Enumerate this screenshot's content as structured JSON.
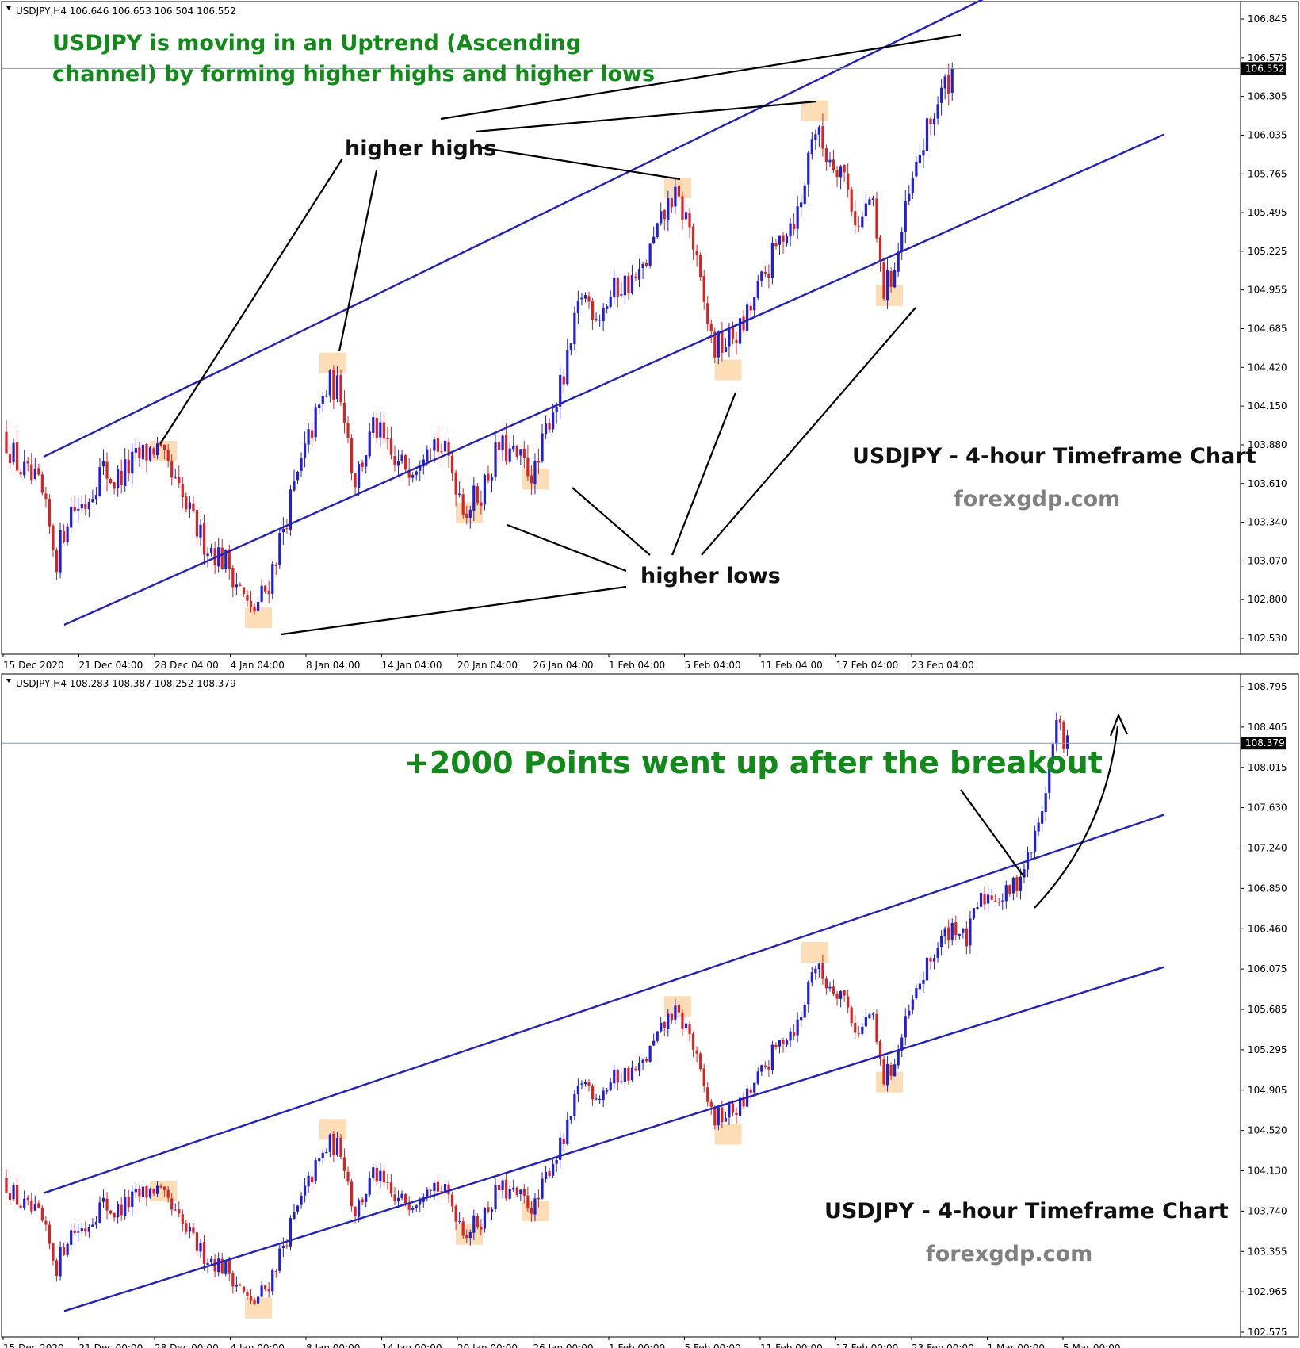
{
  "colors": {
    "bull": "#1f1fd8",
    "bear": "#e02020",
    "channel": "#2222bb",
    "grid": "#000000",
    "highlight": "#fbd7a8",
    "green_text": "#118a1a",
    "brand_text": "#808080"
  },
  "chart_data": [
    {
      "type": "candlestick",
      "instrument_info": "USDJPY,H4  106.646 106.653 106.504 106.552",
      "ylim": [
        102.45,
        106.95
      ],
      "y_ticks": [
        "106.845",
        "106.575",
        "106.305",
        "106.035",
        "105.765",
        "105.495",
        "105.225",
        "104.955",
        "104.685",
        "104.420",
        "104.150",
        "103.880",
        "103.610",
        "103.340",
        "103.070",
        "102.800",
        "102.530"
      ],
      "x_ticks": [
        "15 Dec 2020",
        "21 Dec 04:00",
        "28 Dec 04:00",
        "4 Jan 04:00",
        "8 Jan 04:00",
        "14 Jan 04:00",
        "20 Jan 04:00",
        "26 Jan 04:00",
        "1 Feb 04:00",
        "5 Feb 04:00",
        "11 Feb 04:00",
        "17 Feb 04:00",
        "23 Feb 04:00"
      ],
      "current_price": "106.552",
      "current_price_value": 106.552,
      "channel": {
        "upper": {
          "from": [
            0.045,
            103.78
          ],
          "to": [
            1.2,
            107.1
          ]
        },
        "lower": {
          "from": [
            0.07,
            102.58
          ],
          "to": [
            1.4,
            106.08
          ]
        }
      },
      "anchors": [
        {
          "t": 0.0,
          "p": 103.95
        },
        {
          "t": 0.02,
          "p": 103.7
        },
        {
          "t": 0.045,
          "p": 103.55
        },
        {
          "t": 0.065,
          "p": 103.05
        },
        {
          "t": 0.08,
          "p": 103.4
        },
        {
          "t": 0.1,
          "p": 103.45
        },
        {
          "t": 0.12,
          "p": 103.7
        },
        {
          "t": 0.135,
          "p": 103.6
        },
        {
          "t": 0.16,
          "p": 103.75
        },
        {
          "t": 0.185,
          "p": 103.85
        },
        {
          "t": 0.21,
          "p": 103.55
        },
        {
          "t": 0.24,
          "p": 103.2
        },
        {
          "t": 0.275,
          "p": 103.0
        },
        {
          "t": 0.3,
          "p": 102.65
        },
        {
          "t": 0.32,
          "p": 102.85
        },
        {
          "t": 0.345,
          "p": 103.4
        },
        {
          "t": 0.375,
          "p": 104.0
        },
        {
          "t": 0.395,
          "p": 104.3
        },
        {
          "t": 0.41,
          "p": 104.25
        },
        {
          "t": 0.425,
          "p": 103.6
        },
        {
          "t": 0.45,
          "p": 104.0
        },
        {
          "t": 0.475,
          "p": 103.7
        },
        {
          "t": 0.5,
          "p": 103.75
        },
        {
          "t": 0.515,
          "p": 103.95
        },
        {
          "t": 0.54,
          "p": 103.75
        },
        {
          "t": 0.56,
          "p": 103.4
        },
        {
          "t": 0.58,
          "p": 103.55
        },
        {
          "t": 0.6,
          "p": 103.85
        },
        {
          "t": 0.625,
          "p": 103.75
        },
        {
          "t": 0.645,
          "p": 103.65
        },
        {
          "t": 0.66,
          "p": 104.05
        },
        {
          "t": 0.68,
          "p": 104.35
        },
        {
          "t": 0.7,
          "p": 104.95
        },
        {
          "t": 0.72,
          "p": 104.8
        },
        {
          "t": 0.745,
          "p": 105.0
        },
        {
          "t": 0.77,
          "p": 105.05
        },
        {
          "t": 0.79,
          "p": 105.35
        },
        {
          "t": 0.81,
          "p": 105.65
        },
        {
          "t": 0.83,
          "p": 105.45
        },
        {
          "t": 0.845,
          "p": 104.95
        },
        {
          "t": 0.86,
          "p": 104.55
        },
        {
          "t": 0.875,
          "p": 104.6
        },
        {
          "t": 0.895,
          "p": 104.7
        },
        {
          "t": 0.92,
          "p": 105.05
        },
        {
          "t": 0.945,
          "p": 105.4
        },
        {
          "t": 0.965,
          "p": 105.55
        },
        {
          "t": 0.98,
          "p": 106.15
        },
        {
          "t": 0.995,
          "p": 105.95
        },
        {
          "t": 1.015,
          "p": 105.85
        },
        {
          "t": 1.035,
          "p": 105.4
        },
        {
          "t": 1.05,
          "p": 105.65
        },
        {
          "t": 1.065,
          "p": 104.95
        },
        {
          "t": 1.08,
          "p": 105.15
        },
        {
          "t": 1.095,
          "p": 105.6
        },
        {
          "t": 1.11,
          "p": 105.95
        },
        {
          "t": 1.13,
          "p": 106.3
        },
        {
          "t": 1.15,
          "p": 106.55
        }
      ],
      "highlights": [
        {
          "t": 0.19,
          "p": 103.82
        },
        {
          "t": 0.395,
          "p": 104.45
        },
        {
          "t": 0.305,
          "p": 102.63
        },
        {
          "t": 0.56,
          "p": 103.38
        },
        {
          "t": 0.64,
          "p": 103.62
        },
        {
          "t": 0.812,
          "p": 105.7
        },
        {
          "t": 0.873,
          "p": 104.4
        },
        {
          "t": 0.978,
          "p": 106.25
        },
        {
          "t": 1.068,
          "p": 104.93
        }
      ],
      "annotations": {
        "headline_1": "USDJPY is moving in an Uptrend (Ascending",
        "headline_2": "channel) by forming higher highs and higher lows",
        "higher_highs": "higher highs",
        "higher_lows": "higher lows",
        "title": "USDJPY - 4-hour Timeframe Chart",
        "brand": "forexgdp.com"
      }
    },
    {
      "type": "candlestick",
      "instrument_info": "USDJPY,H4  108.283 108.387 108.252 108.379",
      "ylim": [
        102.45,
        108.97
      ],
      "y_ticks": [
        "108.795",
        "108.405",
        "108.015",
        "107.630",
        "107.240",
        "106.850",
        "106.460",
        "106.075",
        "105.685",
        "105.295",
        "104.905",
        "104.520",
        "104.130",
        "103.740",
        "103.355",
        "102.965",
        "102.575"
      ],
      "x_ticks": [
        "15 Dec 2020",
        "21 Dec 00:00",
        "28 Dec 00:00",
        "4 Jan 00:00",
        "8 Jan 00:00",
        "14 Jan 00:00",
        "20 Jan 00:00",
        "26 Jan 00:00",
        "1 Feb 00:00",
        "5 Feb 00:00",
        "11 Feb 00:00",
        "17 Feb 00:00",
        "23 Feb 00:00",
        "1 Mar 00:00",
        "5 Mar 00:00"
      ],
      "current_price": "108.379",
      "current_price_value": 108.379,
      "channel": {
        "upper": {
          "from": [
            0.045,
            103.8
          ],
          "to": [
            1.4,
            107.65
          ]
        },
        "lower": {
          "from": [
            0.07,
            102.6
          ],
          "to": [
            1.4,
            106.1
          ]
        }
      },
      "extra_anchors": [
        {
          "t": 1.165,
          "p": 106.35
        },
        {
          "t": 1.18,
          "p": 106.75
        },
        {
          "t": 1.195,
          "p": 106.85
        },
        {
          "t": 1.21,
          "p": 106.8
        },
        {
          "t": 1.225,
          "p": 106.95
        },
        {
          "t": 1.24,
          "p": 107.2
        },
        {
          "t": 1.255,
          "p": 107.6
        },
        {
          "t": 1.265,
          "p": 108.1
        },
        {
          "t": 1.275,
          "p": 108.6
        },
        {
          "t": 1.285,
          "p": 108.38
        }
      ],
      "highlights": [
        {
          "t": 0.19,
          "p": 103.82
        },
        {
          "t": 0.395,
          "p": 104.45
        },
        {
          "t": 0.305,
          "p": 102.63
        },
        {
          "t": 0.56,
          "p": 103.38
        },
        {
          "t": 0.64,
          "p": 103.62
        },
        {
          "t": 0.812,
          "p": 105.7
        },
        {
          "t": 0.873,
          "p": 104.4
        },
        {
          "t": 0.978,
          "p": 106.25
        },
        {
          "t": 1.068,
          "p": 104.93
        }
      ],
      "annotations": {
        "breakout": "+2000 Points went up after the breakout",
        "title": "USDJPY - 4-hour Timeframe Chart",
        "brand": "forexgdp.com"
      }
    }
  ]
}
